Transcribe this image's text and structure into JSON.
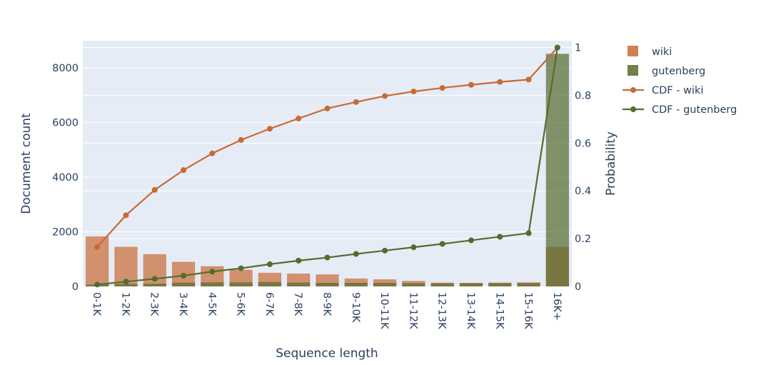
{
  "chart_data": {
    "type": "bar",
    "categories": [
      "0-1K",
      "1-2K",
      "2-3K",
      "3-4K",
      "4-5K",
      "5-6K",
      "6-7K",
      "7-8K",
      "8-9K",
      "9-10K",
      "10-11K",
      "11-12K",
      "12-13K",
      "13-14K",
      "14-15K",
      "15-16K",
      "16K+"
    ],
    "xlabel": "Sequence length",
    "ylabel": "Document count",
    "y2label": "Probability",
    "ylim": [
      0,
      9000
    ],
    "y2lim": [
      0,
      1.0286
    ],
    "yticks": [
      0,
      2000,
      4000,
      6000,
      8000
    ],
    "y2ticks": [
      0,
      0.2,
      0.4,
      0.6,
      0.8,
      1
    ],
    "y2tick_labels": [
      "0",
      "0.2",
      "0.4",
      "0.6",
      "0.8",
      "1"
    ],
    "series": [
      {
        "name": "wiki",
        "kind": "bar",
        "axis": "y",
        "color": "#c96a35",
        "values": [
          1830,
          1450,
          1180,
          900,
          740,
          610,
          500,
          470,
          440,
          290,
          260,
          200,
          140,
          130,
          140,
          150,
          1450
        ]
      },
      {
        "name": "gutenberg",
        "kind": "bar",
        "axis": "y",
        "color": "#556b2f",
        "values": [
          70,
          90,
          100,
          140,
          150,
          150,
          160,
          140,
          130,
          130,
          130,
          120,
          110,
          120,
          120,
          120,
          8520
        ]
      },
      {
        "name": "CDF - wiki",
        "kind": "line",
        "axis": "y2",
        "color": "#c96a35",
        "values": [
          0.165,
          0.298,
          0.404,
          0.487,
          0.557,
          0.613,
          0.66,
          0.703,
          0.745,
          0.772,
          0.797,
          0.816,
          0.831,
          0.844,
          0.856,
          0.866,
          1.0
        ]
      },
      {
        "name": "CDF - gutenberg",
        "kind": "line",
        "axis": "y2",
        "color": "#556b2f",
        "values": [
          0.008,
          0.02,
          0.032,
          0.045,
          0.062,
          0.076,
          0.093,
          0.108,
          0.121,
          0.136,
          0.15,
          0.164,
          0.178,
          0.193,
          0.208,
          0.223,
          1.0
        ]
      }
    ],
    "grid": true,
    "legend_position": "right"
  }
}
